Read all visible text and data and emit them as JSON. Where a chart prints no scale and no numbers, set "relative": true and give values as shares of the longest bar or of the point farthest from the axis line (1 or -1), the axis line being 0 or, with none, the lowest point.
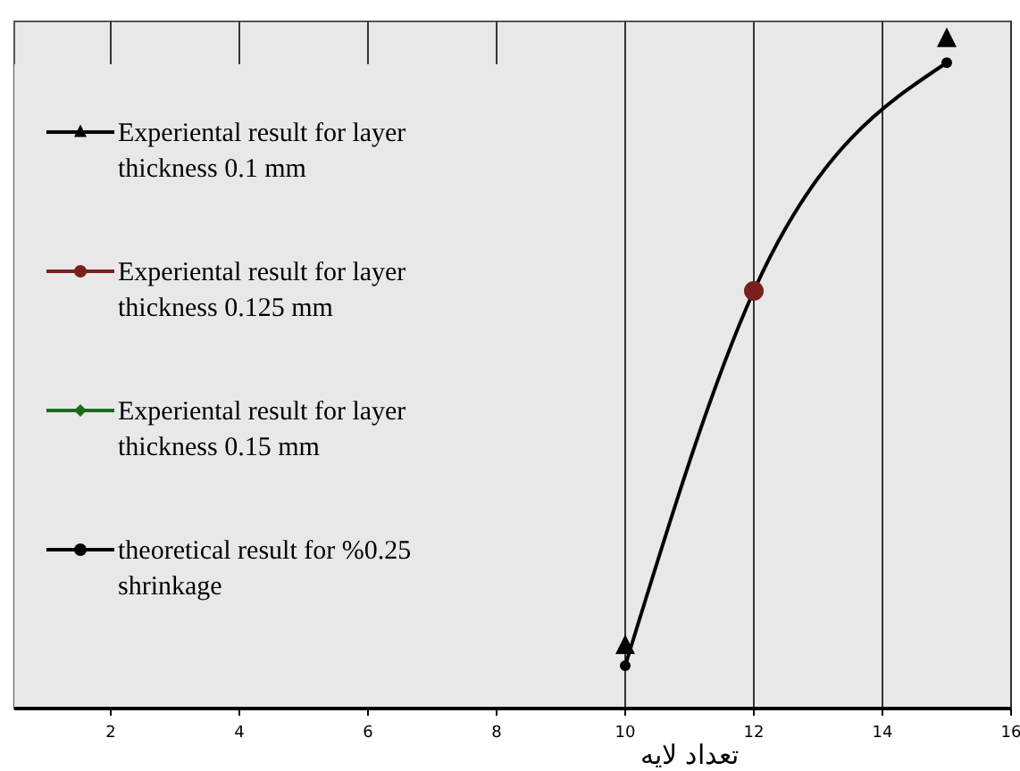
{
  "chart_data": {
    "type": "line",
    "relative": true,
    "xlabel": "تعداد لایه",
    "x": [
      10,
      12,
      15
    ],
    "xlim": [
      0.5,
      16
    ],
    "xticks": [
      2,
      4,
      6,
      8,
      10,
      12,
      14,
      16
    ],
    "grid": "x",
    "legend": "left",
    "line_style": "solid",
    "series": [
      {
        "name": "Experiental result for layer thickness 0.1 mm",
        "color": "#000000",
        "marker": "triangle",
        "values": [
          0.093,
          null,
          1
        ]
      },
      {
        "name": "Experiental result for layer thickness 0.125 mm",
        "color": "#7a1f1f",
        "marker": "circle",
        "values": [
          null,
          0.624,
          null
        ]
      },
      {
        "name": "Experiental result for layer thickness 0.15 mm",
        "color": "#1a6b1a",
        "marker": "diamond",
        "values": [
          null,
          null,
          null
        ]
      },
      {
        "name": "theoretical result for %0.25 shrinkage",
        "color": "#000000",
        "marker": "circle",
        "values": [
          0.064,
          0.624,
          0.965
        ]
      }
    ]
  }
}
